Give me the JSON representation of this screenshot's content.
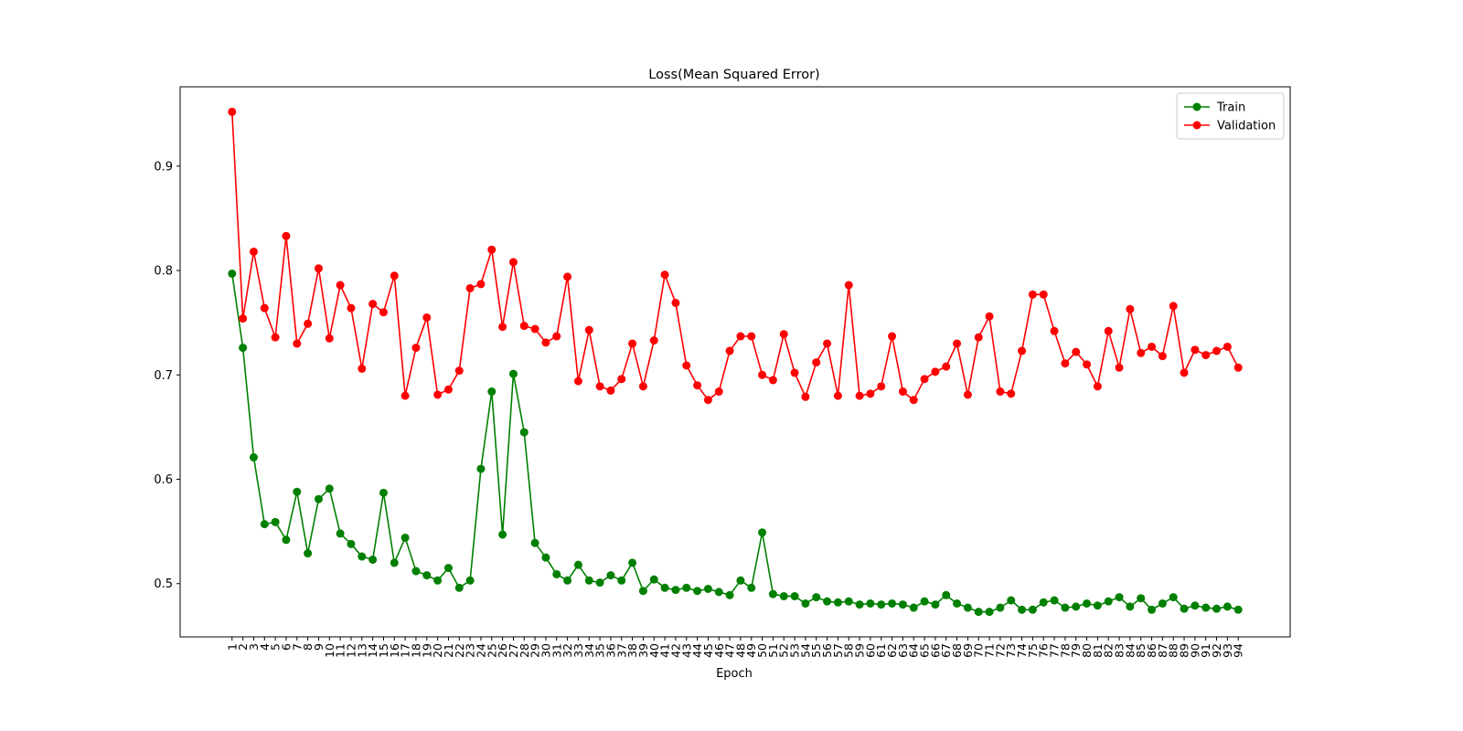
{
  "chart_data": {
    "type": "line",
    "title": "Loss(Mean Squared Error)",
    "xlabel": "Epoch",
    "ylabel": "",
    "x": [
      1,
      2,
      3,
      4,
      5,
      6,
      7,
      8,
      9,
      10,
      11,
      12,
      13,
      14,
      15,
      16,
      17,
      18,
      19,
      20,
      21,
      22,
      23,
      24,
      25,
      26,
      27,
      28,
      29,
      30,
      31,
      32,
      33,
      34,
      35,
      36,
      37,
      38,
      39,
      40,
      41,
      42,
      43,
      44,
      45,
      46,
      47,
      48,
      49,
      50,
      51,
      52,
      53,
      54,
      55,
      56,
      57,
      58,
      59,
      60,
      61,
      62,
      63,
      64,
      65,
      66,
      67,
      68,
      69,
      70,
      71,
      72,
      73,
      74,
      75,
      76,
      77,
      78,
      79,
      80,
      81,
      82,
      83,
      84,
      85,
      86,
      87,
      88,
      89,
      90,
      91,
      92,
      93,
      94
    ],
    "xlim": [
      -3.8,
      98.8
    ],
    "ylim": [
      0.449,
      0.976
    ],
    "yticks": [
      0.5,
      0.6,
      0.7,
      0.8,
      0.9
    ],
    "ytick_labels": [
      "0.5",
      "0.6",
      "0.7",
      "0.8",
      "0.9"
    ],
    "grid": false,
    "legend": {
      "location": "upper right"
    },
    "series": [
      {
        "name": "Train",
        "color": "#008000",
        "marker": "circle",
        "values": [
          0.797,
          0.726,
          0.621,
          0.557,
          0.559,
          0.542,
          0.588,
          0.529,
          0.581,
          0.591,
          0.548,
          0.538,
          0.526,
          0.523,
          0.587,
          0.52,
          0.544,
          0.512,
          0.508,
          0.503,
          0.515,
          0.496,
          0.503,
          0.61,
          0.684,
          0.547,
          0.701,
          0.645,
          0.539,
          0.525,
          0.509,
          0.503,
          0.518,
          0.503,
          0.501,
          0.508,
          0.503,
          0.52,
          0.493,
          0.504,
          0.496,
          0.494,
          0.496,
          0.493,
          0.495,
          0.492,
          0.489,
          0.503,
          0.496,
          0.549,
          0.49,
          0.488,
          0.488,
          0.481,
          0.487,
          0.483,
          0.482,
          0.483,
          0.48,
          0.481,
          0.48,
          0.481,
          0.48,
          0.477,
          0.483,
          0.48,
          0.489,
          0.481,
          0.477,
          0.473,
          0.473,
          0.477,
          0.484,
          0.475,
          0.475,
          0.482,
          0.484,
          0.477,
          0.478,
          0.481,
          0.479,
          0.483,
          0.487,
          0.478,
          0.486,
          0.475,
          0.481,
          0.487,
          0.476,
          0.479,
          0.477,
          0.476,
          0.478,
          0.475
        ]
      },
      {
        "name": "Validation",
        "color": "#ff0000",
        "marker": "circle",
        "values": [
          0.952,
          0.754,
          0.818,
          0.764,
          0.736,
          0.833,
          0.73,
          0.749,
          0.802,
          0.735,
          0.786,
          0.764,
          0.706,
          0.768,
          0.76,
          0.795,
          0.68,
          0.726,
          0.755,
          0.681,
          0.686,
          0.704,
          0.783,
          0.787,
          0.82,
          0.746,
          0.808,
          0.747,
          0.744,
          0.731,
          0.737,
          0.794,
          0.694,
          0.743,
          0.689,
          0.685,
          0.696,
          0.73,
          0.689,
          0.733,
          0.796,
          0.769,
          0.709,
          0.69,
          0.676,
          0.684,
          0.723,
          0.737,
          0.737,
          0.7,
          0.695,
          0.739,
          0.702,
          0.679,
          0.712,
          0.73,
          0.68,
          0.786,
          0.68,
          0.682,
          0.689,
          0.737,
          0.684,
          0.676,
          0.696,
          0.703,
          0.708,
          0.73,
          0.681,
          0.736,
          0.756,
          0.684,
          0.682,
          0.723,
          0.777,
          0.777,
          0.742,
          0.711,
          0.722,
          0.71,
          0.689,
          0.742,
          0.707,
          0.763,
          0.721,
          0.727,
          0.718,
          0.766,
          0.702,
          0.724,
          0.719,
          0.723,
          0.727,
          0.707
        ]
      }
    ]
  }
}
